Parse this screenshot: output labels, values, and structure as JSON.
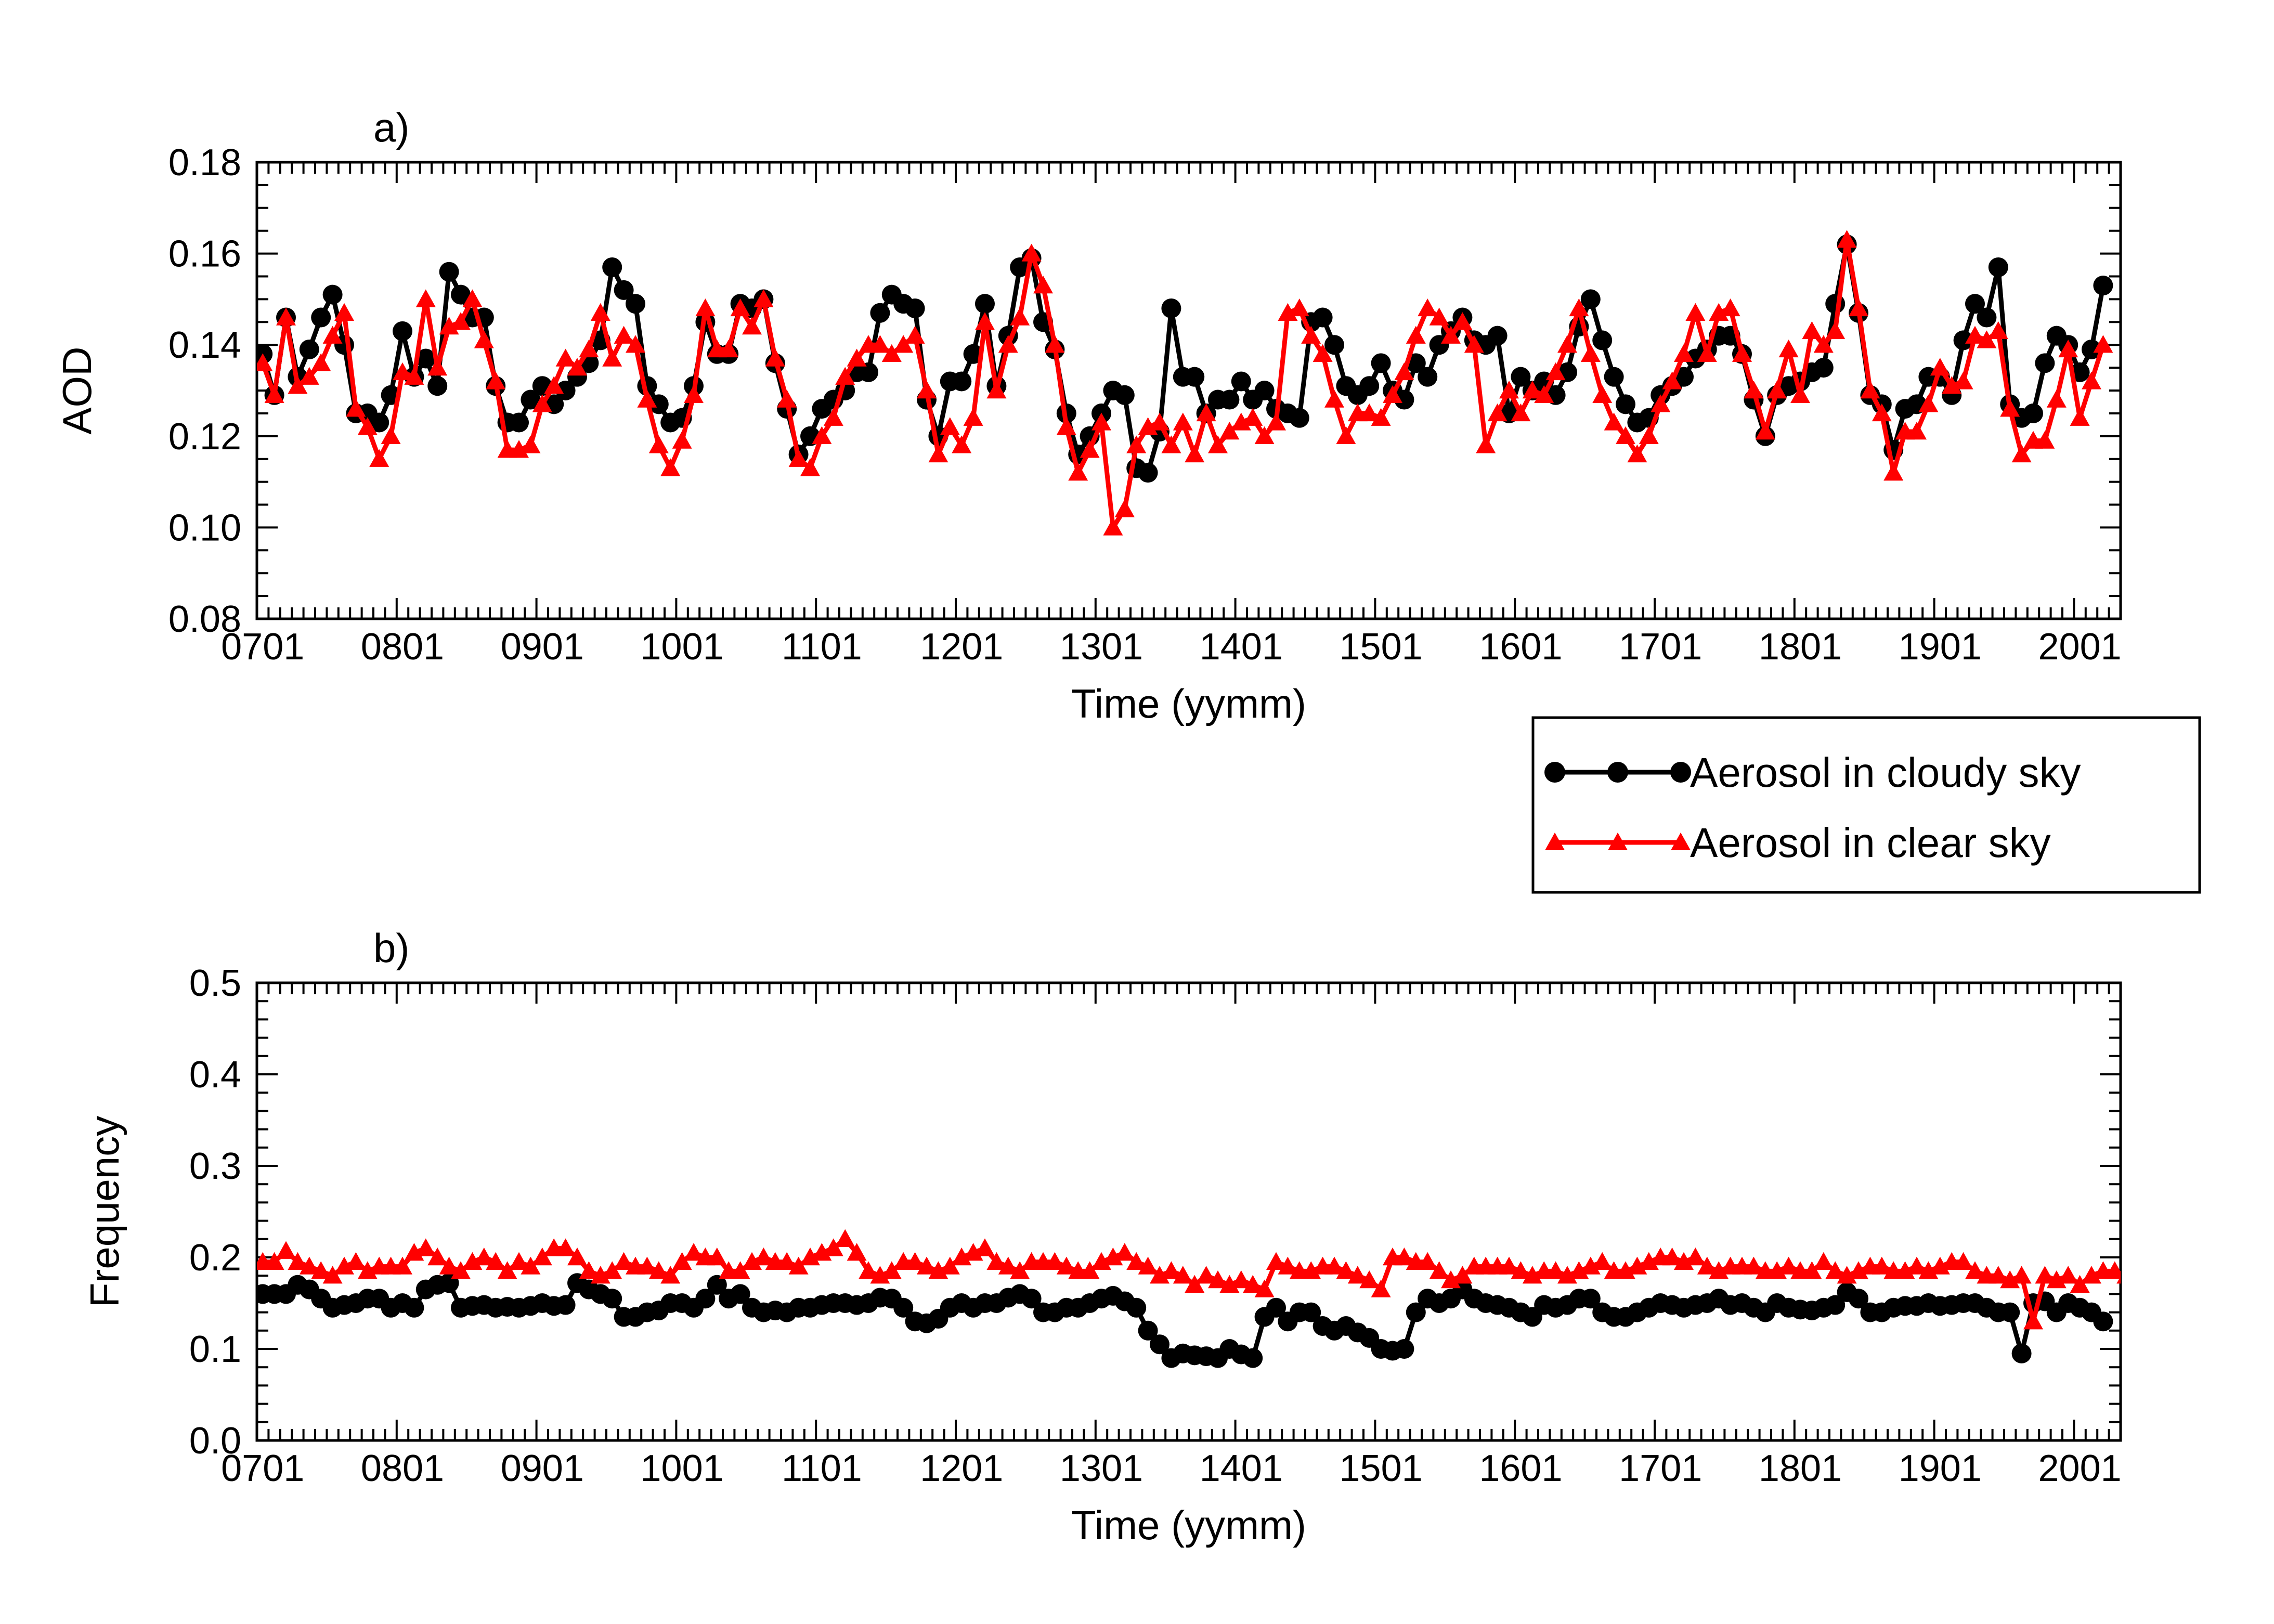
{
  "chart_data": [
    {
      "panel_label": "a)",
      "type": "line",
      "xlabel": "Time (yymm)",
      "ylabel": "AOD",
      "ylim": [
        0.08,
        0.18
      ],
      "yticks": [
        "0.08",
        "0.10",
        "0.12",
        "0.14",
        "0.16",
        "0.18"
      ],
      "xticks": [
        "0701",
        "0801",
        "0901",
        "1001",
        "1101",
        "1201",
        "1301",
        "1401",
        "1501",
        "1601",
        "1701",
        "1801",
        "1901",
        "2001"
      ],
      "x_start": "2007-01",
      "grid": false,
      "series": [
        {
          "name": "Aerosol in cloudy sky",
          "color": "#000000",
          "marker": "circle",
          "values": [
            0.138,
            0.129,
            0.146,
            0.133,
            0.139,
            0.146,
            0.151,
            0.14,
            0.125,
            0.125,
            0.123,
            0.129,
            0.143,
            0.133,
            0.137,
            0.131,
            0.156,
            0.151,
            0.146,
            0.146,
            0.131,
            0.123,
            0.123,
            0.128,
            0.131,
            0.127,
            0.13,
            0.133,
            0.136,
            0.141,
            0.157,
            0.152,
            0.149,
            0.131,
            0.127,
            0.123,
            0.124,
            0.131,
            0.145,
            0.138,
            0.138,
            0.149,
            0.148,
            0.15,
            0.136,
            0.126,
            0.116,
            0.12,
            0.126,
            0.128,
            0.13,
            0.134,
            0.134,
            0.147,
            0.151,
            0.149,
            0.148,
            0.128,
            0.12,
            0.132,
            0.132,
            0.138,
            0.149,
            0.131,
            0.142,
            0.157,
            0.159,
            0.145,
            0.139,
            0.125,
            0.116,
            0.12,
            0.125,
            0.13,
            0.129,
            0.113,
            0.112,
            0.121,
            0.148,
            0.133,
            0.133,
            0.125,
            0.128,
            0.128,
            0.132,
            0.128,
            0.13,
            0.126,
            0.125,
            0.124,
            0.145,
            0.146,
            0.14,
            0.131,
            0.129,
            0.131,
            0.136,
            0.13,
            0.128,
            0.136,
            0.133,
            0.14,
            0.143,
            0.146,
            0.141,
            0.14,
            0.142,
            0.125,
            0.133,
            0.13,
            0.132,
            0.129,
            0.134,
            0.144,
            0.15,
            0.141,
            0.133,
            0.127,
            0.123,
            0.124,
            0.129,
            0.131,
            0.133,
            0.137,
            0.139,
            0.142,
            0.142,
            0.138,
            0.128,
            0.12,
            0.129,
            0.131,
            0.132,
            0.134,
            0.135,
            0.149,
            0.162,
            0.147,
            0.129,
            0.127,
            0.117,
            0.126,
            0.127,
            0.133,
            0.133,
            0.129,
            0.141,
            0.149,
            0.146,
            0.157,
            0.127,
            0.124,
            0.125,
            0.136,
            0.142,
            0.14,
            0.134,
            0.139,
            0.153
          ]
        },
        {
          "name": "Aerosol in clear sky",
          "color": "#ff0000",
          "marker": "triangle",
          "values": [
            0.136,
            0.129,
            0.146,
            0.131,
            0.133,
            0.136,
            0.142,
            0.147,
            0.126,
            0.122,
            0.115,
            0.12,
            0.134,
            0.133,
            0.15,
            0.135,
            0.144,
            0.145,
            0.15,
            0.141,
            0.132,
            0.117,
            0.117,
            0.118,
            0.127,
            0.131,
            0.137,
            0.135,
            0.139,
            0.147,
            0.137,
            0.142,
            0.14,
            0.128,
            0.118,
            0.113,
            0.119,
            0.129,
            0.148,
            0.139,
            0.139,
            0.148,
            0.144,
            0.15,
            0.137,
            0.128,
            0.115,
            0.113,
            0.12,
            0.124,
            0.133,
            0.137,
            0.14,
            0.14,
            0.138,
            0.14,
            0.142,
            0.13,
            0.116,
            0.122,
            0.118,
            0.124,
            0.145,
            0.13,
            0.14,
            0.146,
            0.16,
            0.153,
            0.14,
            0.122,
            0.112,
            0.117,
            0.123,
            0.1,
            0.104,
            0.118,
            0.122,
            0.123,
            0.118,
            0.123,
            0.116,
            0.125,
            0.118,
            0.121,
            0.123,
            0.124,
            0.12,
            0.123,
            0.147,
            0.148,
            0.142,
            0.138,
            0.128,
            0.12,
            0.125,
            0.125,
            0.124,
            0.129,
            0.134,
            0.142,
            0.148,
            0.146,
            0.142,
            0.145,
            0.14,
            0.118,
            0.125,
            0.13,
            0.125,
            0.13,
            0.129,
            0.134,
            0.14,
            0.148,
            0.138,
            0.129,
            0.123,
            0.12,
            0.116,
            0.12,
            0.127,
            0.132,
            0.138,
            0.147,
            0.138,
            0.147,
            0.148,
            0.138,
            0.13,
            0.121,
            0.13,
            0.139,
            0.129,
            0.143,
            0.14,
            0.143,
            0.163,
            0.148,
            0.13,
            0.125,
            0.112,
            0.121,
            0.121,
            0.127,
            0.135,
            0.131,
            0.132,
            0.142,
            0.141,
            0.143,
            0.126,
            0.116,
            0.119,
            0.119,
            0.128,
            0.139,
            0.124,
            0.132,
            0.14
          ]
        }
      ]
    },
    {
      "panel_label": "b)",
      "type": "line",
      "xlabel": "Time (yymm)",
      "ylabel": "Frequency",
      "ylim": [
        0.0,
        0.5
      ],
      "yticks": [
        "0.0",
        "0.1",
        "0.2",
        "0.3",
        "0.4",
        "0.5"
      ],
      "xticks": [
        "0701",
        "0801",
        "0901",
        "1001",
        "1101",
        "1201",
        "1301",
        "1401",
        "1501",
        "1601",
        "1701",
        "1801",
        "1901",
        "2001"
      ],
      "x_start": "2007-01",
      "grid": false,
      "series": [
        {
          "name": "Aerosol in cloudy sky",
          "color": "#000000",
          "marker": "circle",
          "values": [
            0.16,
            0.16,
            0.16,
            0.17,
            0.165,
            0.155,
            0.145,
            0.148,
            0.15,
            0.155,
            0.155,
            0.145,
            0.15,
            0.145,
            0.165,
            0.17,
            0.172,
            0.145,
            0.147,
            0.148,
            0.145,
            0.146,
            0.145,
            0.147,
            0.15,
            0.147,
            0.148,
            0.172,
            0.165,
            0.16,
            0.155,
            0.135,
            0.135,
            0.14,
            0.142,
            0.15,
            0.15,
            0.145,
            0.155,
            0.17,
            0.155,
            0.16,
            0.145,
            0.14,
            0.142,
            0.14,
            0.145,
            0.145,
            0.148,
            0.15,
            0.15,
            0.148,
            0.15,
            0.156,
            0.155,
            0.145,
            0.13,
            0.128,
            0.133,
            0.145,
            0.15,
            0.145,
            0.15,
            0.15,
            0.156,
            0.16,
            0.155,
            0.14,
            0.14,
            0.145,
            0.145,
            0.15,
            0.155,
            0.158,
            0.152,
            0.145,
            0.12,
            0.105,
            0.09,
            0.095,
            0.093,
            0.092,
            0.09,
            0.1,
            0.094,
            0.09,
            0.135,
            0.145,
            0.13,
            0.14,
            0.14,
            0.125,
            0.12,
            0.125,
            0.118,
            0.112,
            0.1,
            0.098,
            0.1,
            0.14,
            0.155,
            0.15,
            0.155,
            0.165,
            0.155,
            0.15,
            0.148,
            0.145,
            0.14,
            0.135,
            0.148,
            0.145,
            0.148,
            0.155,
            0.155,
            0.14,
            0.135,
            0.135,
            0.14,
            0.145,
            0.15,
            0.148,
            0.145,
            0.148,
            0.15,
            0.155,
            0.148,
            0.15,
            0.145,
            0.14,
            0.15,
            0.145,
            0.143,
            0.142,
            0.145,
            0.148,
            0.162,
            0.155,
            0.14,
            0.14,
            0.145,
            0.147,
            0.147,
            0.15,
            0.147,
            0.148,
            0.15,
            0.15,
            0.145,
            0.14,
            0.14,
            0.095,
            0.15,
            0.152,
            0.14,
            0.15,
            0.145,
            0.14,
            0.13
          ]
        },
        {
          "name": "Aerosol in clear sky",
          "color": "#ff0000",
          "marker": "triangle",
          "values": [
            0.195,
            0.195,
            0.207,
            0.195,
            0.19,
            0.185,
            0.18,
            0.19,
            0.195,
            0.185,
            0.19,
            0.19,
            0.19,
            0.205,
            0.21,
            0.2,
            0.19,
            0.185,
            0.195,
            0.2,
            0.195,
            0.185,
            0.195,
            0.19,
            0.2,
            0.21,
            0.21,
            0.2,
            0.185,
            0.18,
            0.185,
            0.195,
            0.19,
            0.19,
            0.185,
            0.18,
            0.195,
            0.205,
            0.2,
            0.2,
            0.185,
            0.185,
            0.195,
            0.2,
            0.195,
            0.195,
            0.19,
            0.2,
            0.205,
            0.21,
            0.22,
            0.205,
            0.185,
            0.18,
            0.185,
            0.195,
            0.195,
            0.19,
            0.185,
            0.19,
            0.2,
            0.205,
            0.21,
            0.195,
            0.19,
            0.185,
            0.195,
            0.195,
            0.195,
            0.19,
            0.185,
            0.185,
            0.195,
            0.2,
            0.205,
            0.195,
            0.19,
            0.18,
            0.185,
            0.18,
            0.17,
            0.18,
            0.175,
            0.17,
            0.175,
            0.17,
            0.165,
            0.195,
            0.19,
            0.185,
            0.185,
            0.19,
            0.19,
            0.185,
            0.18,
            0.175,
            0.165,
            0.2,
            0.2,
            0.195,
            0.195,
            0.185,
            0.175,
            0.18,
            0.19,
            0.19,
            0.19,
            0.19,
            0.185,
            0.18,
            0.185,
            0.185,
            0.18,
            0.185,
            0.19,
            0.195,
            0.185,
            0.185,
            0.19,
            0.195,
            0.2,
            0.2,
            0.195,
            0.2,
            0.19,
            0.185,
            0.19,
            0.19,
            0.19,
            0.185,
            0.185,
            0.19,
            0.185,
            0.185,
            0.195,
            0.185,
            0.18,
            0.185,
            0.19,
            0.19,
            0.185,
            0.185,
            0.19,
            0.185,
            0.19,
            0.195,
            0.195,
            0.185,
            0.18,
            0.18,
            0.175,
            0.18,
            0.13,
            0.18,
            0.175,
            0.18,
            0.17,
            0.18,
            0.185,
            0.185,
            0.18
          ]
        }
      ]
    }
  ],
  "legend": {
    "position": "right, between panels",
    "entries": [
      "Aerosol in cloudy sky",
      "Aerosol in clear sky"
    ]
  }
}
